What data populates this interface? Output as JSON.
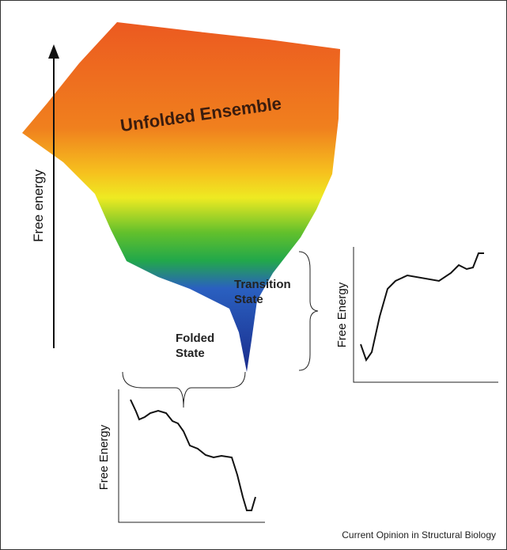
{
  "axis_label": "Free energy",
  "labels": {
    "unfolded": "Unfolded Ensemble",
    "transition": "Transition State",
    "folded": "Folded State"
  },
  "insets": [
    {
      "axis_label": "Free Energy"
    },
    {
      "axis_label": "Free Energy"
    }
  ],
  "footer": "Current Opinion in Structural Biology"
}
